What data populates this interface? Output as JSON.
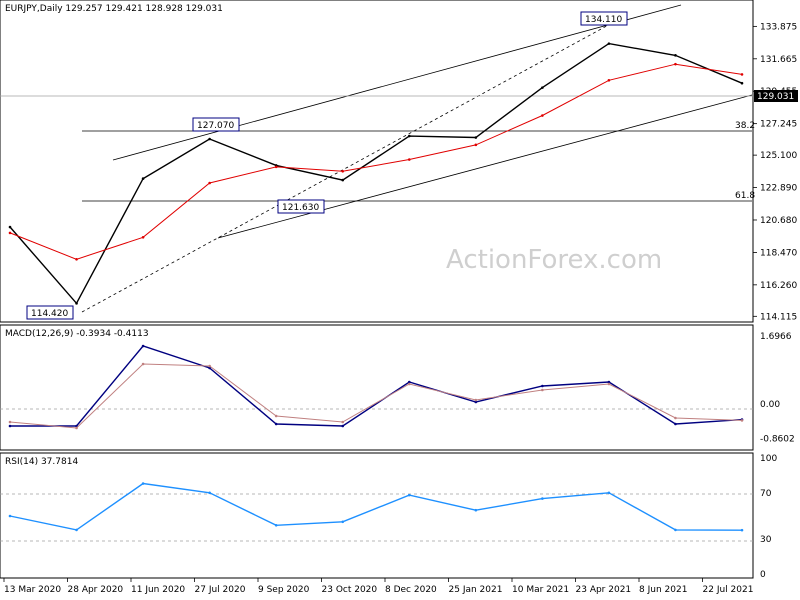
{
  "chart_data": [
    {
      "type": "line",
      "panel": "price",
      "header": "EURJPY,Daily  129.257 129.421 128.928 129.031",
      "symbol": "EURJPY",
      "timeframe": "Daily",
      "ohlc": {
        "open": 129.257,
        "high": 129.421,
        "low": 128.928,
        "close": 129.031
      },
      "last_price_label": "129.031",
      "y_ticks": [
        "133.875",
        "131.665",
        "129.455",
        "127.245",
        "125.100",
        "122.890",
        "120.680",
        "118.470",
        "116.260",
        "114.115"
      ],
      "ylim": [
        114.0,
        135.4
      ],
      "x_ticks": [
        "13 Mar 2020",
        "28 Apr 2020",
        "11 Jun 2020",
        "27 Jul 2020",
        "9 Sep 2020",
        "23 Oct 2020",
        "8 Dec 2020",
        "25 Jan 2021",
        "10 Mar 2021",
        "23 Apr 2021",
        "8 Jun 2021",
        "22 Jul 2021"
      ],
      "x": [
        "13 Mar 2020",
        "28 Apr 2020",
        "11 Jun 2020",
        "27 Jul 2020",
        "9 Sep 2020",
        "23 Oct 2020",
        "8 Dec 2020",
        "25 Jan 2021",
        "10 Mar 2021",
        "23 Apr 2021",
        "8 Jun 2021",
        "22 Jul 2021"
      ],
      "series": [
        {
          "values": [
            120.2,
            115.0,
            123.5,
            126.2,
            124.4,
            123.4,
            126.4,
            126.3,
            129.7,
            132.7,
            131.9,
            130.0
          ],
          "color": "#000000"
        },
        {
          "values": [
            119.8,
            118.0,
            119.5,
            123.2,
            124.3,
            124.0,
            124.8,
            125.8,
            127.8,
            130.2,
            131.3,
            130.6
          ],
          "color": "#e00000"
        }
      ],
      "annotations": [
        {
          "text": "134.110",
          "value": 134.11
        },
        {
          "text": "127.070",
          "value": 127.07
        },
        {
          "text": "121.630",
          "value": 121.63
        },
        {
          "text": "114.420",
          "value": 114.42
        }
      ],
      "retracement_levels": [
        {
          "text": "38.2",
          "price": 126.9
        },
        {
          "text": "61.8",
          "price": 121.9
        }
      ],
      "watermark": "ActionForex.com"
    },
    {
      "type": "line",
      "panel": "macd",
      "header": "MACD(12,26,9) -0.3934 -0.4113",
      "y_ticks": [
        "1.6966",
        "0.00",
        "-0.8602"
      ],
      "ylim": [
        -1.05,
        1.85
      ],
      "x": [
        "13 Mar 2020",
        "28 Apr 2020",
        "11 Jun 2020",
        "27 Jul 2020",
        "9 Sep 2020",
        "23 Oct 2020",
        "8 Dec 2020",
        "25 Jan 2021",
        "10 Mar 2021",
        "23 Apr 2021",
        "8 Jun 2021",
        "22 Jul 2021"
      ],
      "series": [
        {
          "values": [
            -0.55,
            -0.55,
            1.45,
            0.9,
            -0.5,
            -0.55,
            0.55,
            0.05,
            0.45,
            0.55,
            -0.5,
            -0.39
          ],
          "color": "#000080"
        },
        {
          "values": [
            -0.45,
            -0.6,
            1.0,
            0.95,
            -0.3,
            -0.45,
            0.5,
            0.1,
            0.35,
            0.5,
            -0.35,
            -0.41
          ],
          "color": "#c08080"
        }
      ]
    },
    {
      "type": "line",
      "panel": "rsi",
      "header": "RSI(14) 37.7814",
      "y_ticks": [
        "100",
        "70",
        "30",
        "0"
      ],
      "ylim": [
        0,
        100
      ],
      "x": [
        "13 Mar 2020",
        "28 Apr 2020",
        "11 Jun 2020",
        "27 Jul 2020",
        "9 Sep 2020",
        "23 Oct 2020",
        "8 Dec 2020",
        "25 Jan 2021",
        "10 Mar 2021",
        "23 Apr 2021",
        "8 Jun 2021",
        "22 Jul 2021"
      ],
      "series": [
        {
          "values": [
            50,
            38,
            78,
            70,
            42,
            45,
            68,
            55,
            65,
            70,
            38,
            37.8
          ],
          "color": "#1e90ff"
        }
      ]
    }
  ]
}
